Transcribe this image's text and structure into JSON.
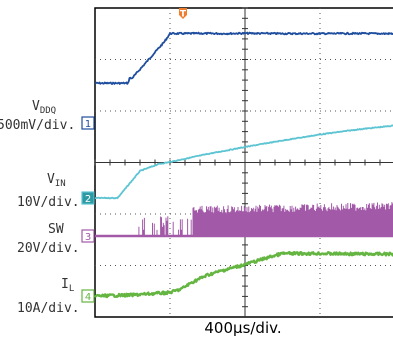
{
  "chart_data": {
    "type": "line",
    "timebase": "400µs/div.",
    "channels": [
      {
        "id": "1",
        "label": "V",
        "sub": "DDQ",
        "scale": "500mV/div.",
        "color": "#1f4e9e",
        "points": [
          [
            0,
            83.2
          ],
          [
            0.44,
            83.2
          ],
          [
            0.46,
            78
          ],
          [
            0.49,
            78.5
          ],
          [
            0.55,
            73.5
          ],
          [
            0.65,
            65
          ],
          [
            0.75,
            56.5
          ],
          [
            0.85,
            48
          ],
          [
            0.92,
            42.3
          ],
          [
            1.0,
            33.5
          ],
          [
            1.15,
            33.6
          ],
          [
            1.4,
            33.4
          ],
          [
            1.7,
            33.6
          ],
          [
            2.0,
            33.3
          ],
          [
            2.5,
            33.6
          ],
          [
            3.0,
            33.6
          ],
          [
            3.5,
            33.5
          ],
          [
            4.0,
            33.7
          ]
        ]
      },
      {
        "id": "2",
        "label": "V",
        "sub": "IN",
        "scale": "10V/div.",
        "color": "#5cc4d2",
        "points": [
          [
            0,
            198
          ],
          [
            0.3,
            198
          ],
          [
            0.6,
            171
          ],
          [
            0.85,
            164
          ],
          [
            1.0,
            162
          ],
          [
            1.5,
            154
          ],
          [
            2.0,
            147
          ],
          [
            2.5,
            140.5
          ],
          [
            3.0,
            134.5
          ],
          [
            3.5,
            129.5
          ],
          [
            4.0,
            125.5
          ]
        ]
      },
      {
        "id": "3",
        "label": "SW",
        "sub": "",
        "scale": "20V/div.",
        "color": "#a25aa8",
        "baseline": 236,
        "burst_start": 0.55,
        "burst_dense": 1.3,
        "burst_top": 206
      },
      {
        "id": "4",
        "label": "I",
        "sub": "L",
        "scale": "10A/div.",
        "color": "#64b541",
        "points": [
          [
            0,
            296
          ],
          [
            0.5,
            295
          ],
          [
            0.8,
            293.5
          ],
          [
            1.0,
            292.5
          ],
          [
            1.15,
            289
          ],
          [
            1.3,
            282
          ],
          [
            1.5,
            275
          ],
          [
            1.7,
            270.5
          ],
          [
            2.0,
            264.5
          ],
          [
            2.2,
            260
          ],
          [
            2.35,
            256.5
          ],
          [
            2.5,
            253.5
          ],
          [
            3.0,
            253.5
          ],
          [
            3.5,
            254
          ],
          [
            4.0,
            254
          ]
        ]
      }
    ]
  }
}
